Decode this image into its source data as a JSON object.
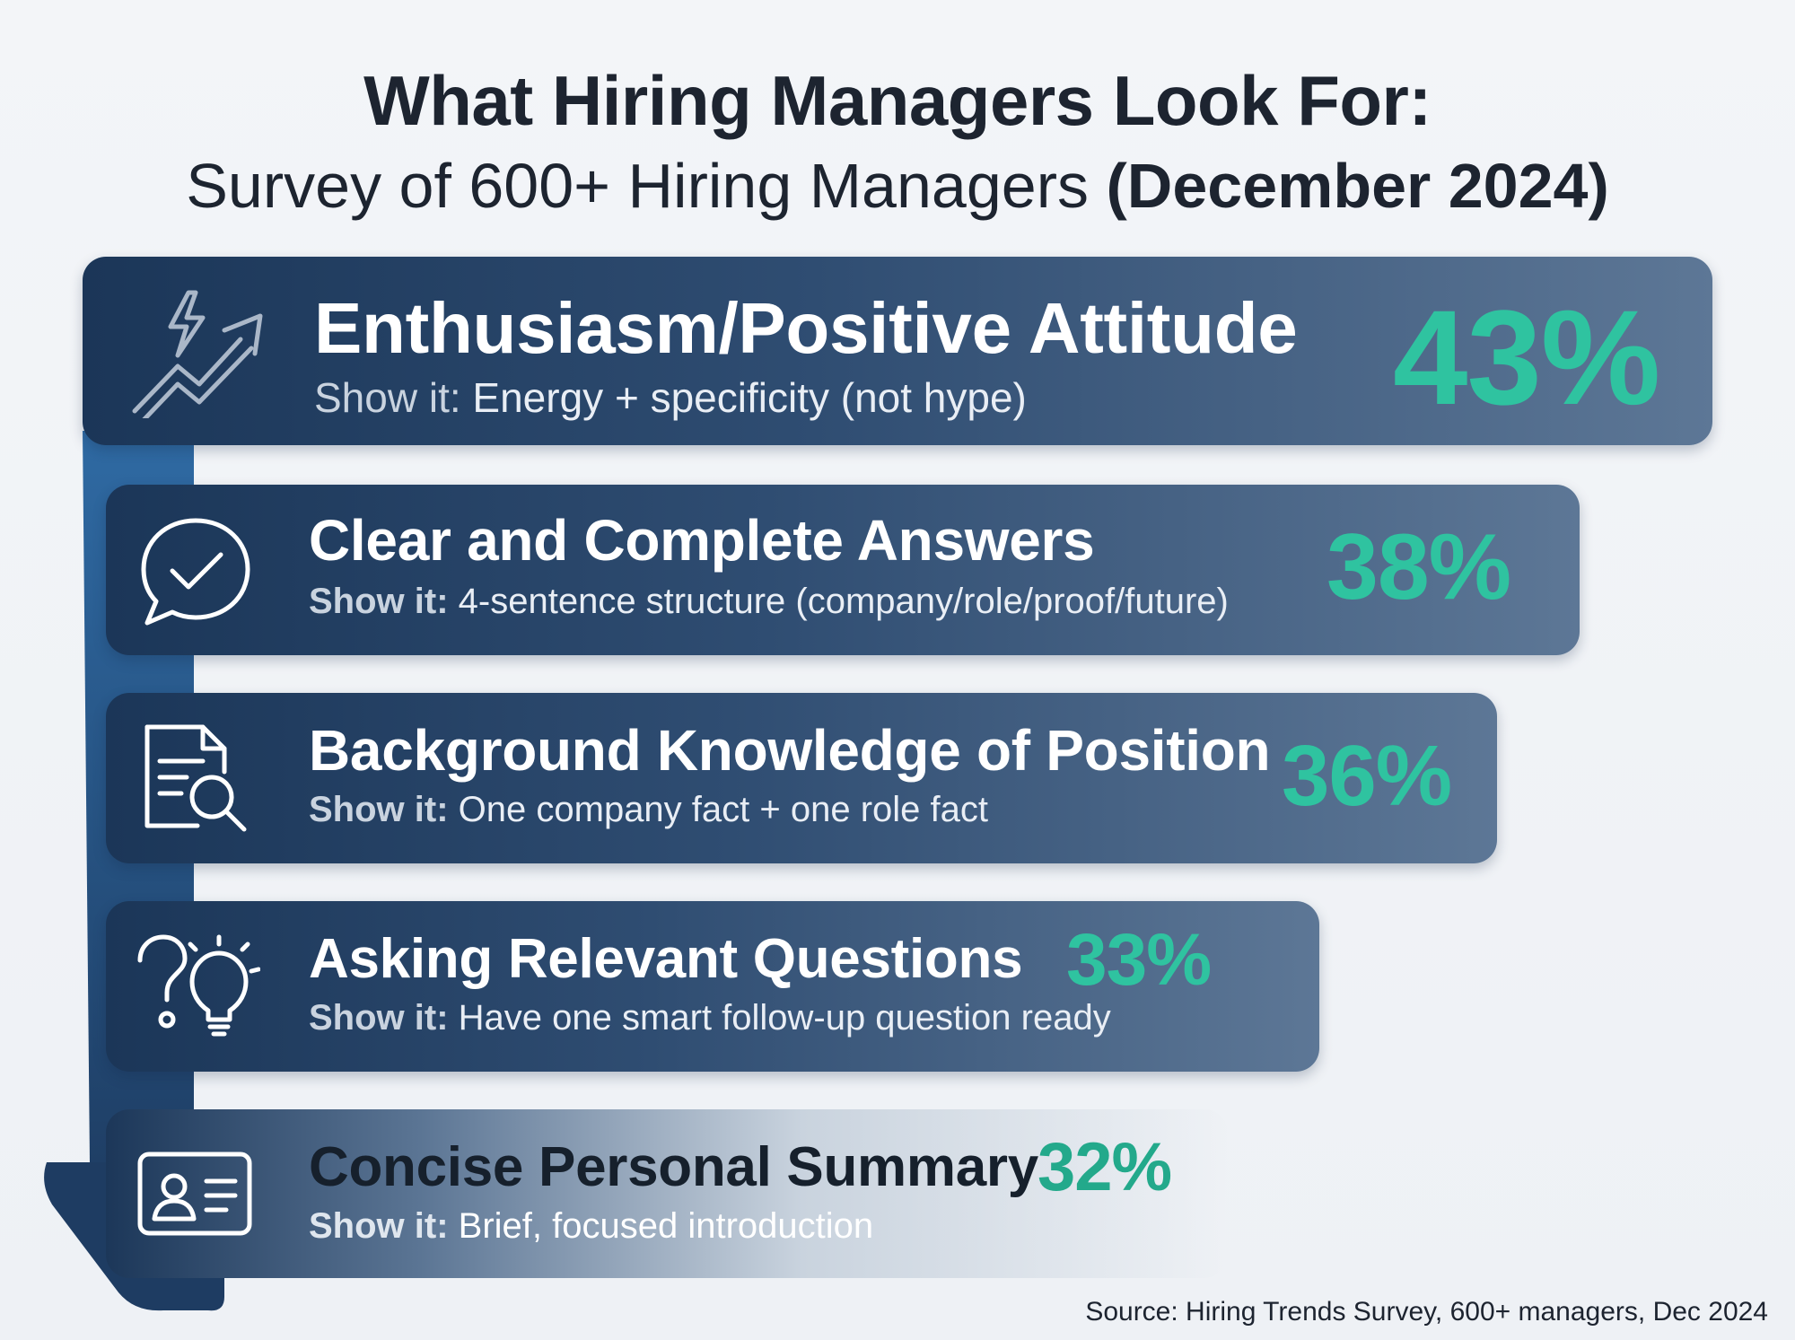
{
  "title": {
    "line1": "What Hiring Managers Look For:",
    "line2_main": "Survey of 600+ Hiring Managers",
    "line2_strong": "(December 2024)"
  },
  "colors": {
    "bar_dark": "#1b3658",
    "bar_light": "#5d7796",
    "accent_percent": "#2fc3a0",
    "arrow": "#2c5d91"
  },
  "chart_data": {
    "type": "bar",
    "orientation": "horizontal",
    "title": "What Hiring Managers Look For:",
    "subtitle": "Survey of 600+ Hiring Managers (December 2024)",
    "categories": [
      "Enthusiasm/Positive Attitude",
      "Clear and Complete Answers",
      "Background Knowledge of Position",
      "Asking Relevant Questions",
      "Concise Personal Summary"
    ],
    "values": [
      43,
      38,
      36,
      33,
      32
    ],
    "unit": "%",
    "source": "Source: Hiring Trends Survey, 600+ managers, Dec 2024"
  },
  "rows": [
    {
      "title": "Enthusiasm/Positive Attitude",
      "show_label": "Show it:",
      "show_text": "Energy + specificity (not hype)",
      "percent": "43%",
      "icon": "lightning-trend-arrow-icon"
    },
    {
      "title": "Clear and Complete Answers",
      "show_label": "Show it:",
      "show_text": "4-sentence structure (company/role/proof/future)",
      "percent": "38%",
      "icon": "speech-bubble-check-icon"
    },
    {
      "title": "Background Knowledge of Position",
      "show_label": "Show it:",
      "show_text": "One company fact + one role fact",
      "percent": "36%",
      "icon": "document-search-icon"
    },
    {
      "title": "Asking Relevant Questions",
      "show_label": "Show it:",
      "show_text": "Have one smart follow-up question ready",
      "percent": "33%",
      "icon": "question-lightbulb-icon"
    },
    {
      "title": "Concise Personal Summary",
      "show_label": "Show it:",
      "show_text": "Brief, focused introduction",
      "percent": "32%",
      "icon": "id-card-icon"
    }
  ],
  "source": "Source: Hiring Trends Survey, 600+ managers, Dec 2024"
}
